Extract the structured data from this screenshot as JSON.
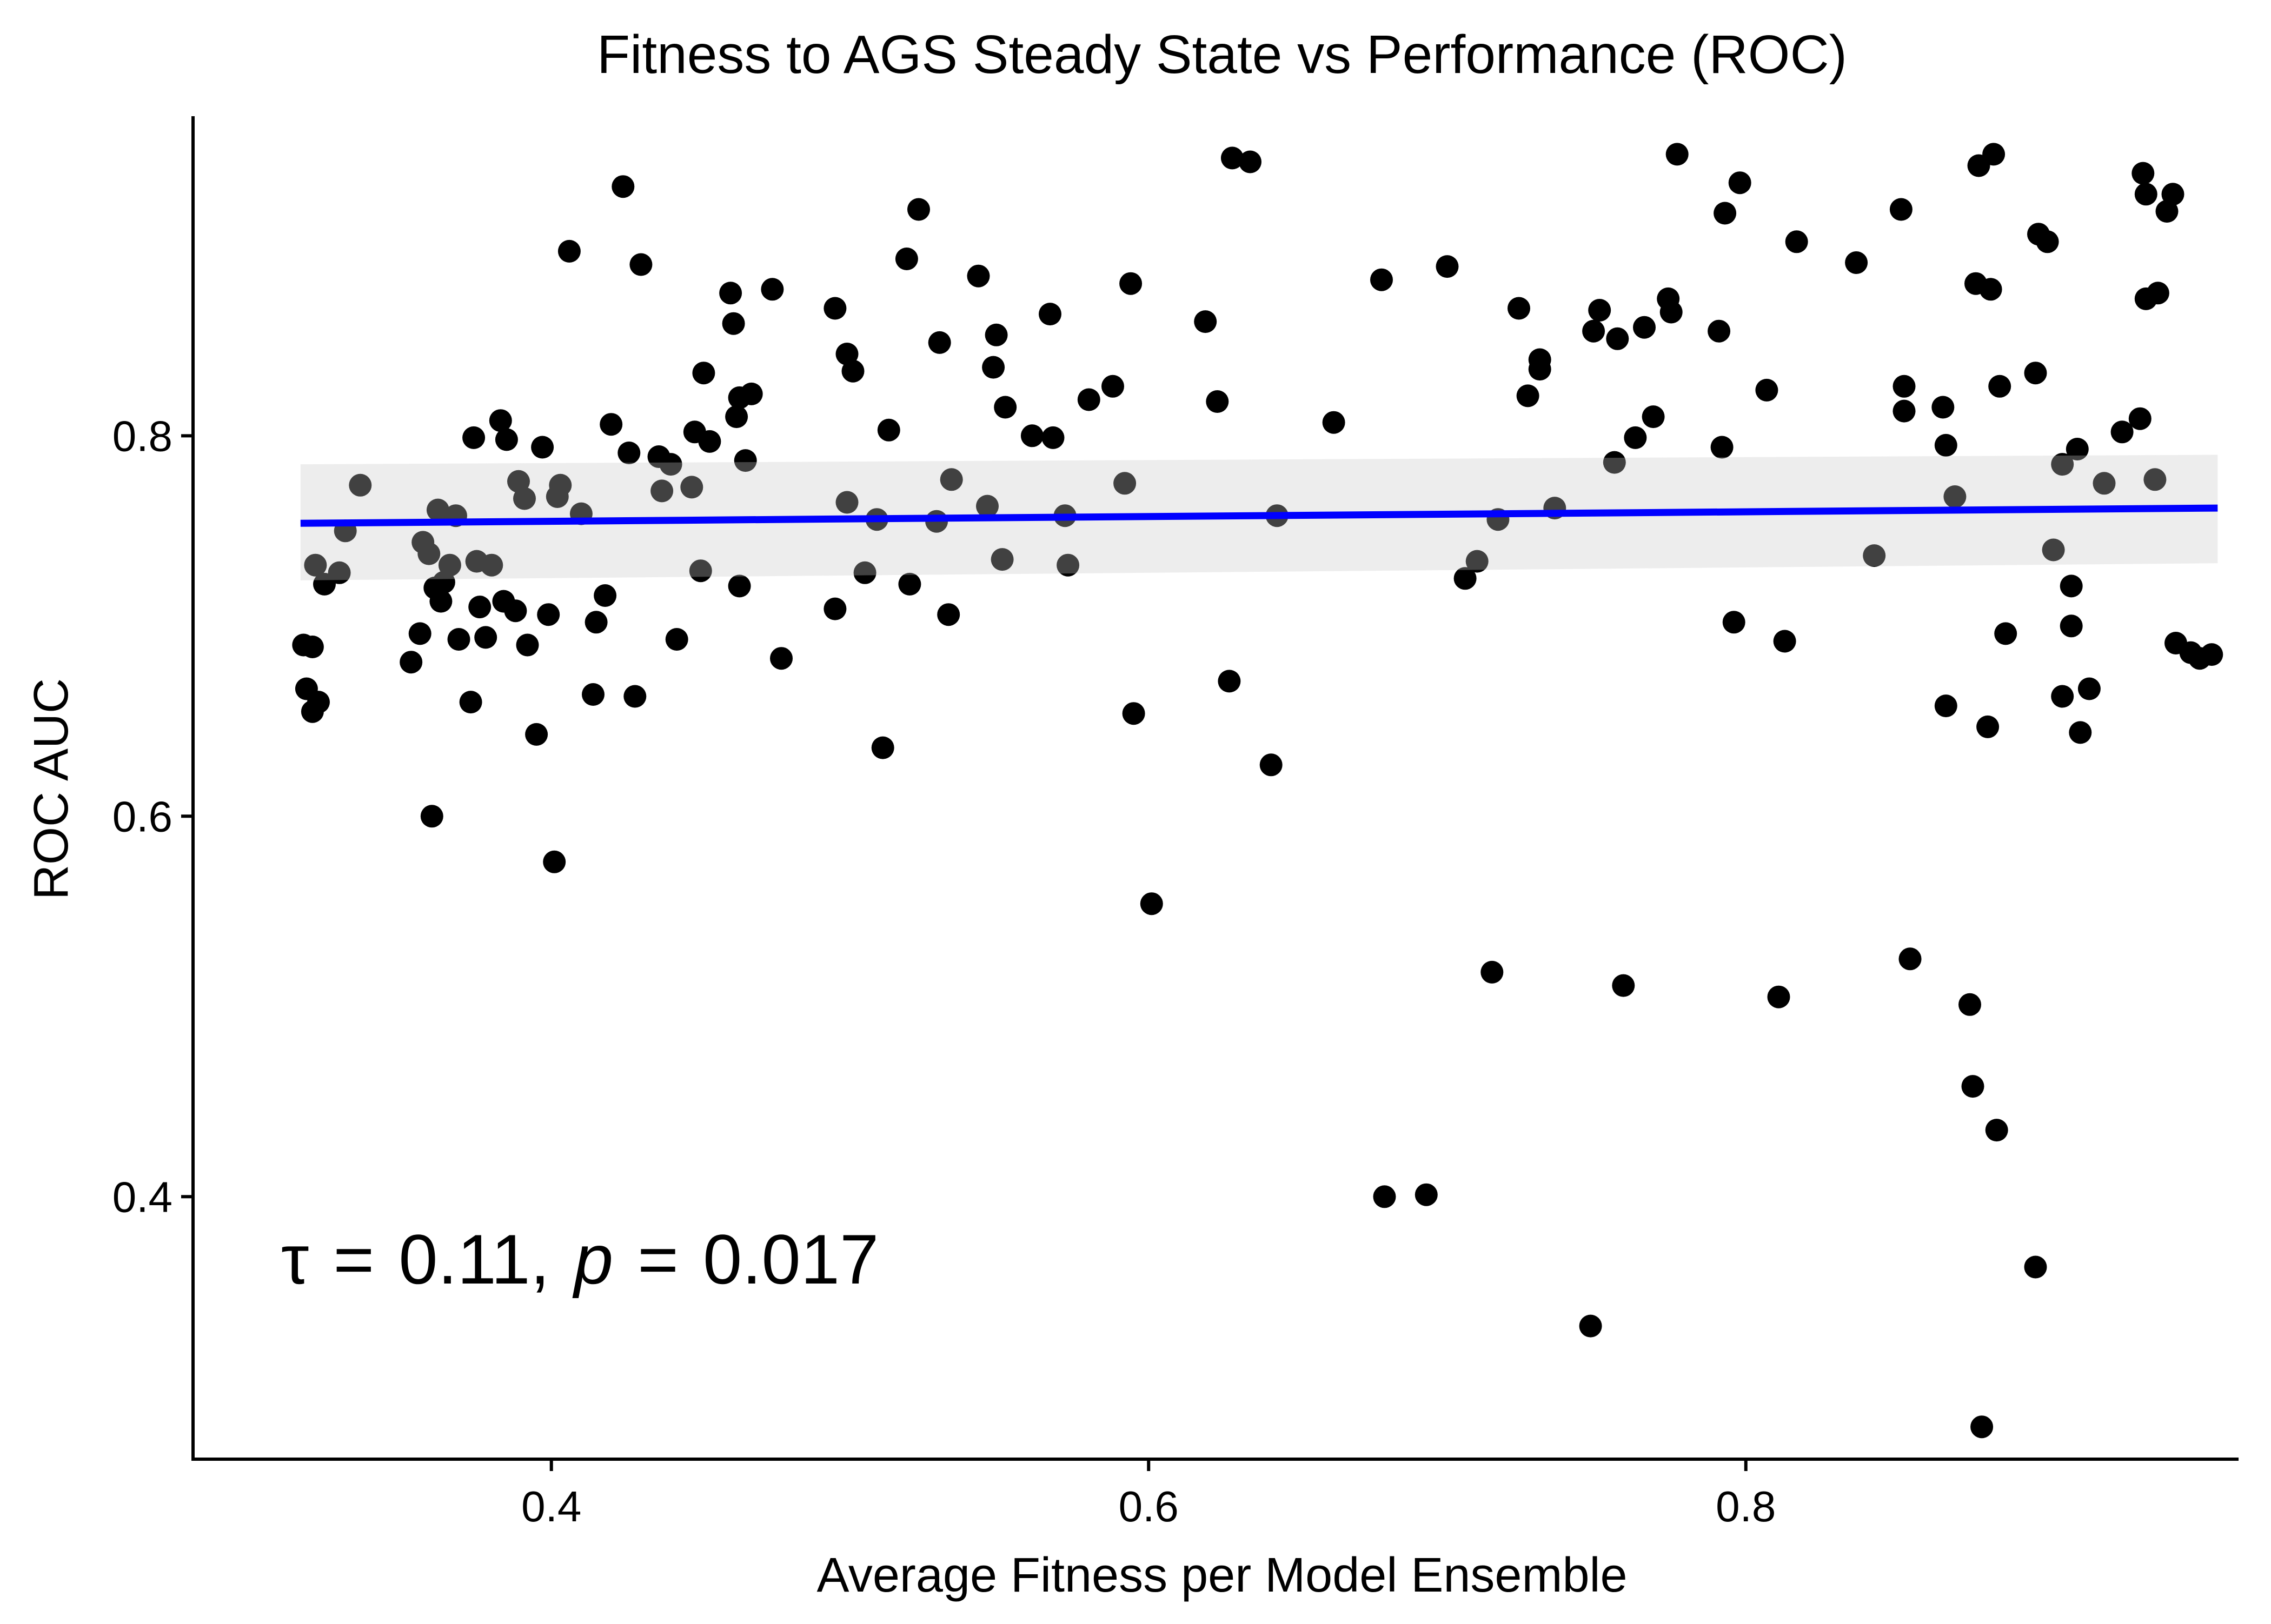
{
  "chart_data": {
    "type": "scatter",
    "title": "Fitness to AGS Steady State vs Performance (ROC)",
    "xlabel": "Average Fitness per Model Ensemble",
    "ylabel": "ROC AUC",
    "xlim": [
      0.28,
      0.965
    ],
    "ylim": [
      0.262,
      0.968
    ],
    "x_ticks": [
      {
        "value": 0.4,
        "label": "0.4"
      },
      {
        "value": 0.6,
        "label": "0.6"
      },
      {
        "value": 0.8,
        "label": "0.8"
      }
    ],
    "y_ticks": [
      {
        "value": 0.4,
        "label": "0.4"
      },
      {
        "value": 0.6,
        "label": "0.6"
      },
      {
        "value": 0.8,
        "label": "0.8"
      }
    ],
    "grid": false,
    "legend": "none",
    "annotation": {
      "tau_symbol": "τ",
      "tau_value": "0.11,",
      "p_symbol": "p",
      "p_value": "0.017",
      "equals": "="
    },
    "colors": {
      "points": "#000000",
      "trend_line": "#0000ff",
      "confidence_band": "#ebebeb"
    },
    "trend_line": {
      "x": [
        0.316,
        0.958
      ],
      "y": [
        0.754,
        0.762
      ]
    },
    "confidence_band": {
      "x": [
        0.316,
        0.958
      ],
      "lower": [
        0.724,
        0.733
      ],
      "upper": [
        0.785,
        0.79
      ]
    },
    "points": [
      [
        0.317,
        0.69
      ],
      [
        0.318,
        0.667
      ],
      [
        0.32,
        0.689
      ],
      [
        0.32,
        0.655
      ],
      [
        0.322,
        0.66
      ],
      [
        0.321,
        0.732
      ],
      [
        0.324,
        0.722
      ],
      [
        0.329,
        0.728
      ],
      [
        0.331,
        0.75
      ],
      [
        0.336,
        0.774
      ],
      [
        0.353,
        0.681
      ],
      [
        0.356,
        0.696
      ],
      [
        0.357,
        0.744
      ],
      [
        0.359,
        0.738
      ],
      [
        0.36,
        0.6
      ],
      [
        0.361,
        0.72
      ],
      [
        0.362,
        0.761
      ],
      [
        0.363,
        0.713
      ],
      [
        0.364,
        0.723
      ],
      [
        0.366,
        0.732
      ],
      [
        0.368,
        0.758
      ],
      [
        0.369,
        0.693
      ],
      [
        0.373,
        0.66
      ],
      [
        0.374,
        0.799
      ],
      [
        0.375,
        0.734
      ],
      [
        0.376,
        0.71
      ],
      [
        0.378,
        0.694
      ],
      [
        0.38,
        0.732
      ],
      [
        0.383,
        0.808
      ],
      [
        0.384,
        0.713
      ],
      [
        0.385,
        0.798
      ],
      [
        0.388,
        0.708
      ],
      [
        0.389,
        0.776
      ],
      [
        0.391,
        0.767
      ],
      [
        0.392,
        0.69
      ],
      [
        0.395,
        0.643
      ],
      [
        0.397,
        0.794
      ],
      [
        0.399,
        0.706
      ],
      [
        0.401,
        0.576
      ],
      [
        0.402,
        0.768
      ],
      [
        0.403,
        0.774
      ],
      [
        0.406,
        0.897
      ],
      [
        0.41,
        0.759
      ],
      [
        0.414,
        0.664
      ],
      [
        0.415,
        0.702
      ],
      [
        0.418,
        0.716
      ],
      [
        0.42,
        0.806
      ],
      [
        0.424,
        0.931
      ],
      [
        0.426,
        0.791
      ],
      [
        0.428,
        0.663
      ],
      [
        0.43,
        0.89
      ],
      [
        0.436,
        0.789
      ],
      [
        0.437,
        0.771
      ],
      [
        0.44,
        0.785
      ],
      [
        0.442,
        0.693
      ],
      [
        0.447,
        0.773
      ],
      [
        0.448,
        0.802
      ],
      [
        0.45,
        0.729
      ],
      [
        0.451,
        0.833
      ],
      [
        0.453,
        0.797
      ],
      [
        0.46,
        0.875
      ],
      [
        0.461,
        0.859
      ],
      [
        0.462,
        0.81
      ],
      [
        0.463,
        0.82
      ],
      [
        0.463,
        0.721
      ],
      [
        0.465,
        0.787
      ],
      [
        0.467,
        0.822
      ],
      [
        0.474,
        0.877
      ],
      [
        0.477,
        0.683
      ],
      [
        0.495,
        0.867
      ],
      [
        0.495,
        0.709
      ],
      [
        0.499,
        0.765
      ],
      [
        0.499,
        0.843
      ],
      [
        0.501,
        0.834
      ],
      [
        0.505,
        0.728
      ],
      [
        0.509,
        0.756
      ],
      [
        0.511,
        0.636
      ],
      [
        0.513,
        0.803
      ],
      [
        0.519,
        0.893
      ],
      [
        0.52,
        0.722
      ],
      [
        0.523,
        0.919
      ],
      [
        0.529,
        0.755
      ],
      [
        0.53,
        0.849
      ],
      [
        0.533,
        0.706
      ],
      [
        0.534,
        0.777
      ],
      [
        0.543,
        0.884
      ],
      [
        0.546,
        0.763
      ],
      [
        0.548,
        0.836
      ],
      [
        0.549,
        0.853
      ],
      [
        0.551,
        0.735
      ],
      [
        0.552,
        0.815
      ],
      [
        0.561,
        0.8
      ],
      [
        0.567,
        0.864
      ],
      [
        0.568,
        0.799
      ],
      [
        0.572,
        0.758
      ],
      [
        0.573,
        0.732
      ],
      [
        0.58,
        0.819
      ],
      [
        0.588,
        0.826
      ],
      [
        0.592,
        0.775
      ],
      [
        0.594,
        0.88
      ],
      [
        0.595,
        0.654
      ],
      [
        0.601,
        0.554
      ],
      [
        0.619,
        0.86
      ],
      [
        0.623,
        0.818
      ],
      [
        0.627,
        0.671
      ],
      [
        0.628,
        0.946
      ],
      [
        0.634,
        0.944
      ],
      [
        0.641,
        0.627
      ],
      [
        0.643,
        0.758
      ],
      [
        0.662,
        0.807
      ],
      [
        0.678,
        0.882
      ],
      [
        0.679,
        0.4
      ],
      [
        0.693,
        0.401
      ],
      [
        0.7,
        0.889
      ],
      [
        0.706,
        0.725
      ],
      [
        0.71,
        0.734
      ],
      [
        0.715,
        0.518
      ],
      [
        0.717,
        0.756
      ],
      [
        0.724,
        0.867
      ],
      [
        0.727,
        0.821
      ],
      [
        0.731,
        0.835
      ],
      [
        0.731,
        0.84
      ],
      [
        0.736,
        0.762
      ],
      [
        0.748,
        0.332
      ],
      [
        0.749,
        0.855
      ],
      [
        0.751,
        0.866
      ],
      [
        0.756,
        0.786
      ],
      [
        0.757,
        0.851
      ],
      [
        0.759,
        0.511
      ],
      [
        0.763,
        0.799
      ],
      [
        0.766,
        0.857
      ],
      [
        0.769,
        0.81
      ],
      [
        0.774,
        0.872
      ],
      [
        0.775,
        0.865
      ],
      [
        0.777,
        0.948
      ],
      [
        0.791,
        0.855
      ],
      [
        0.792,
        0.794
      ],
      [
        0.793,
        0.917
      ],
      [
        0.796,
        0.702
      ],
      [
        0.798,
        0.933
      ],
      [
        0.807,
        0.824
      ],
      [
        0.811,
        0.505
      ],
      [
        0.813,
        0.692
      ],
      [
        0.817,
        0.902
      ],
      [
        0.837,
        0.891
      ],
      [
        0.843,
        0.737
      ],
      [
        0.852,
        0.919
      ],
      [
        0.853,
        0.813
      ],
      [
        0.853,
        0.826
      ],
      [
        0.855,
        0.525
      ],
      [
        0.866,
        0.815
      ],
      [
        0.867,
        0.658
      ],
      [
        0.867,
        0.795
      ],
      [
        0.87,
        0.768
      ],
      [
        0.875,
        0.501
      ],
      [
        0.876,
        0.458
      ],
      [
        0.877,
        0.88
      ],
      [
        0.878,
        0.942
      ],
      [
        0.879,
        0.279
      ],
      [
        0.881,
        0.647
      ],
      [
        0.882,
        0.877
      ],
      [
        0.883,
        0.948
      ],
      [
        0.884,
        0.435
      ],
      [
        0.885,
        0.826
      ],
      [
        0.887,
        0.696
      ],
      [
        0.897,
        0.833
      ],
      [
        0.897,
        0.363
      ],
      [
        0.898,
        0.906
      ],
      [
        0.901,
        0.902
      ],
      [
        0.903,
        0.74
      ],
      [
        0.906,
        0.663
      ],
      [
        0.906,
        0.785
      ],
      [
        0.909,
        0.7
      ],
      [
        0.909,
        0.721
      ],
      [
        0.911,
        0.793
      ],
      [
        0.912,
        0.644
      ],
      [
        0.915,
        0.667
      ],
      [
        0.92,
        0.775
      ],
      [
        0.926,
        0.802
      ],
      [
        0.932,
        0.809
      ],
      [
        0.933,
        0.938
      ],
      [
        0.934,
        0.927
      ],
      [
        0.934,
        0.872
      ],
      [
        0.937,
        0.777
      ],
      [
        0.938,
        0.875
      ],
      [
        0.941,
        0.918
      ],
      [
        0.943,
        0.927
      ],
      [
        0.944,
        0.691
      ],
      [
        0.949,
        0.686
      ],
      [
        0.952,
        0.683
      ],
      [
        0.956,
        0.685
      ]
    ]
  }
}
